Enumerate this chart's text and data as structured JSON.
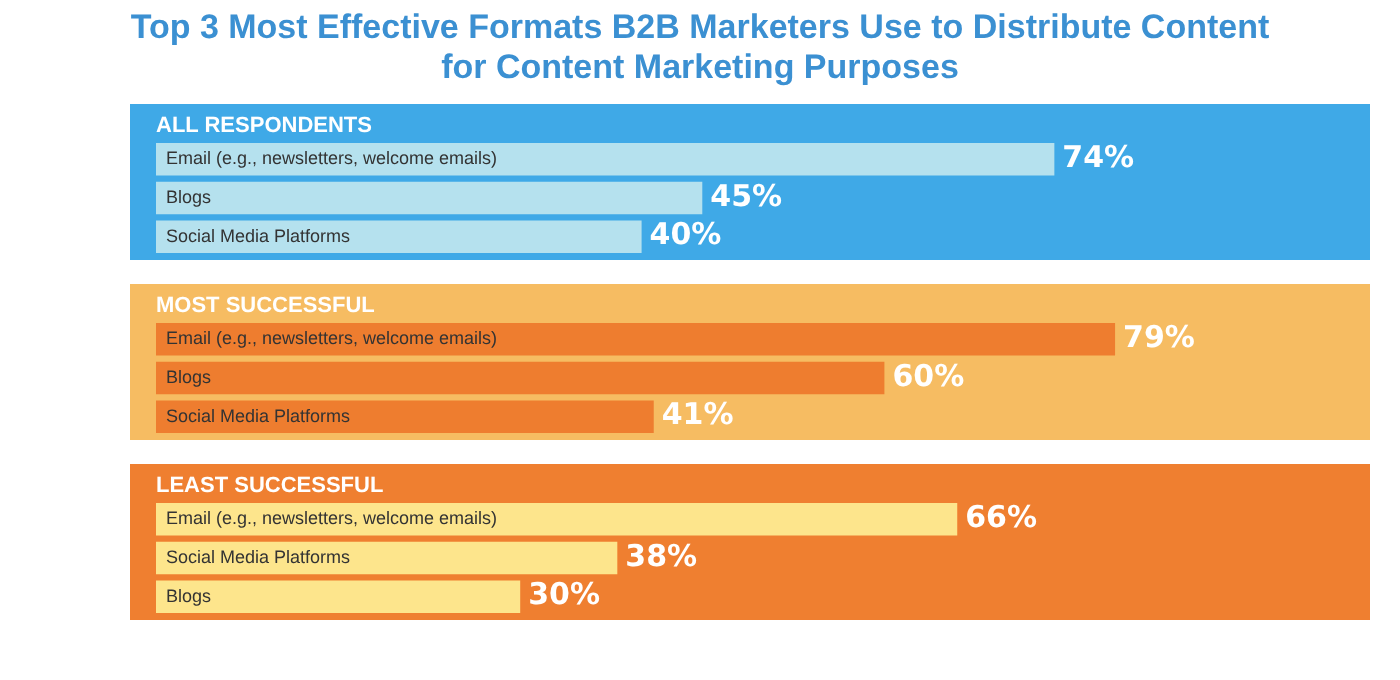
{
  "chart_data": [
    {
      "type": "bar",
      "title": "Top 3 Most Effective Formats B2B Marketers Use to Distribute Content for Content Marketing Purposes",
      "subtitle": "ALL RESPONDENTS",
      "orientation": "horizontal",
      "categories": [
        "Email (e.g., newsletters, welcome emails)",
        "Blogs",
        "Social Media Platforms"
      ],
      "values": [
        74,
        45,
        40
      ],
      "value_labels": [
        "74%",
        "45%",
        "40%"
      ],
      "color": "#b5e1ee",
      "xlim": [
        0,
        100
      ],
      "tick_labels": false
    },
    {
      "type": "bar",
      "subtitle": "MOST SUCCESSFUL",
      "orientation": "horizontal",
      "categories": [
        "Email (e.g., newsletters, welcome emails)",
        "Blogs",
        "Social Media Platforms"
      ],
      "values": [
        79,
        60,
        41
      ],
      "value_labels": [
        "79%",
        "60%",
        "41%"
      ],
      "color": "#ee7d2f",
      "xlim": [
        0,
        100
      ],
      "tick_labels": false
    },
    {
      "type": "bar",
      "subtitle": "LEAST SUCCESSFUL",
      "orientation": "horizontal",
      "categories": [
        "Email (e.g., newsletters, welcome emails)",
        "Social Media Platforms",
        "Blogs"
      ],
      "values": [
        66,
        38,
        30
      ],
      "value_labels": [
        "66%",
        "38%",
        "30%"
      ],
      "color": "#fde58c",
      "xlim": [
        0,
        100
      ],
      "tick_labels": false
    }
  ]
}
